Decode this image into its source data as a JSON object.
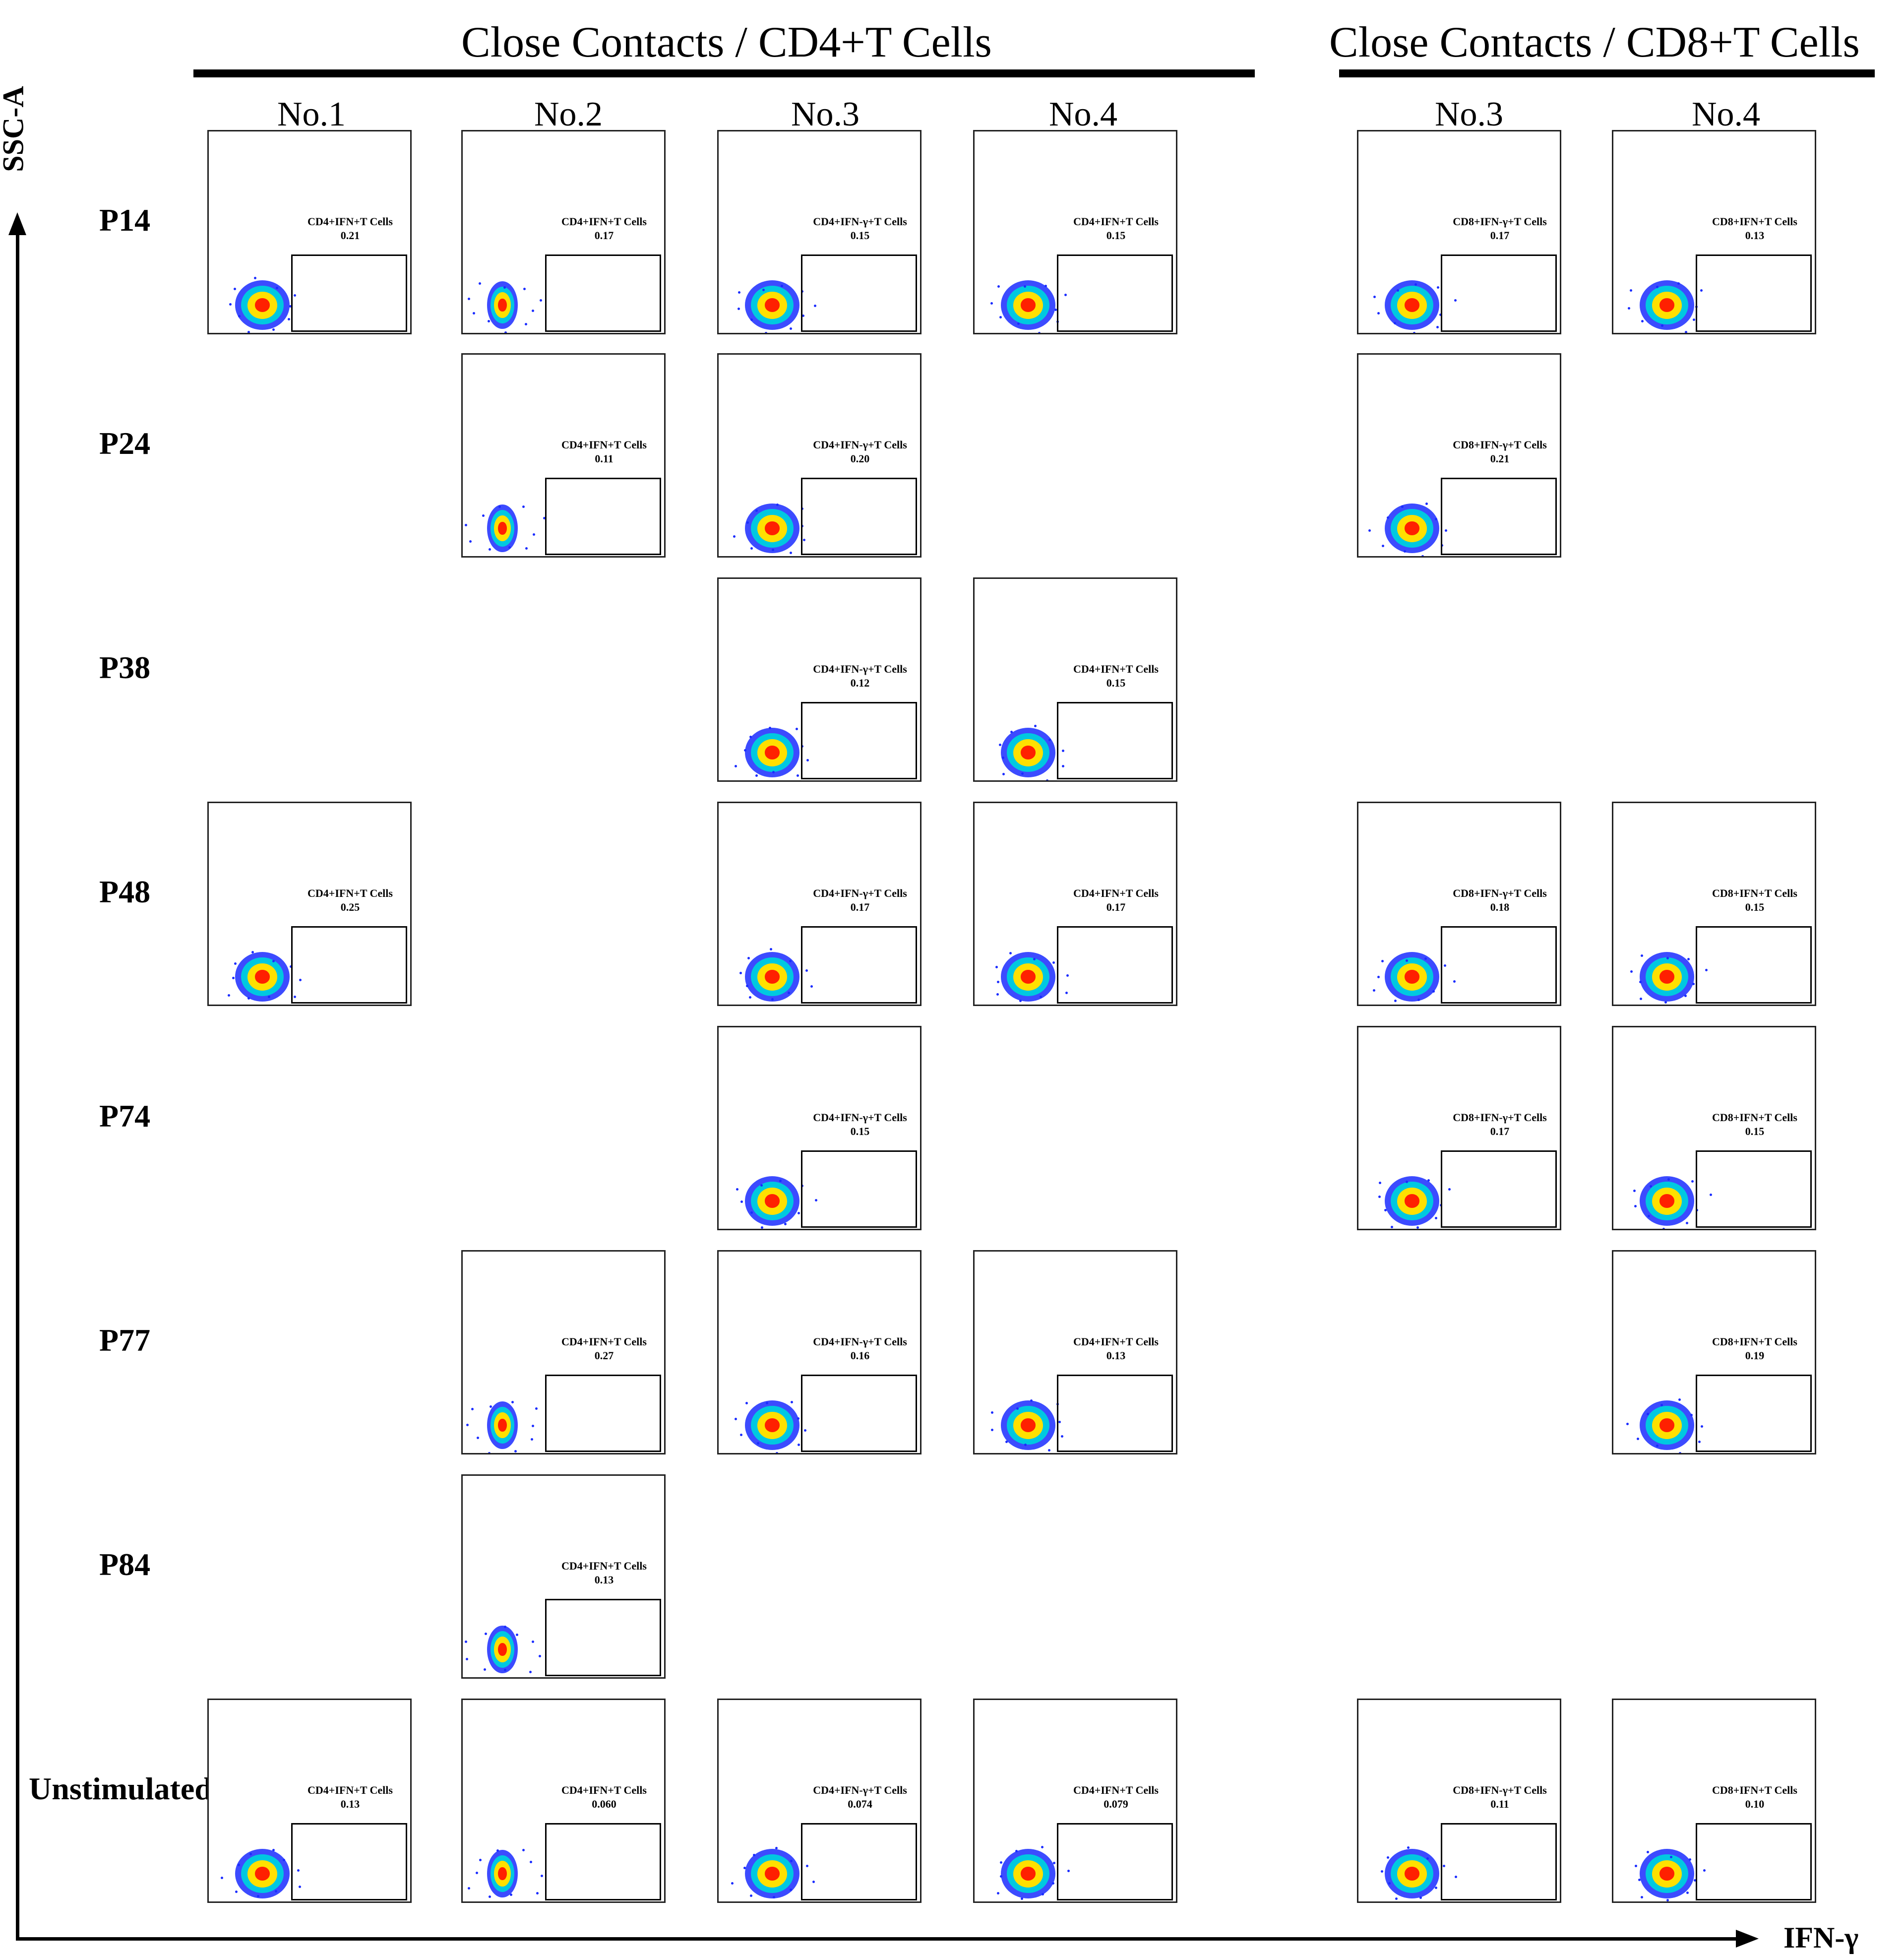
{
  "group_titles": [
    "Close Contacts / CD4+T Cells",
    "Close Contacts / CD8+T Cells"
  ],
  "column_labels": [
    "No.1",
    "No.2",
    "No.3",
    "No.4",
    "No.3",
    "No.4"
  ],
  "row_labels": [
    "P14",
    "P24",
    "P38",
    "P48",
    "P74",
    "P77",
    "P84",
    "Unstimulated"
  ],
  "y_axis_label": "SSC-A",
  "x_axis_label": "IFN-γ",
  "colors": {
    "cloud_outer": "#1a2cff",
    "cloud_mid": "#00c8e0",
    "cloud_inner": "#ffe000",
    "cloud_core": "#ff2000"
  },
  "panels": [
    {
      "row": 0,
      "col": 0,
      "gate": "CD4+IFN+T Cells",
      "value": "0.21"
    },
    {
      "row": 0,
      "col": 1,
      "gate": "CD4+IFN+T Cells",
      "value": "0.17"
    },
    {
      "row": 0,
      "col": 2,
      "gate": "CD4+IFN-γ+T Cells",
      "value": "0.15"
    },
    {
      "row": 0,
      "col": 3,
      "gate": "CD4+IFN+T Cells",
      "value": "0.15"
    },
    {
      "row": 0,
      "col": 4,
      "gate": "CD8+IFN-γ+T Cells",
      "value": "0.17"
    },
    {
      "row": 0,
      "col": 5,
      "gate": "CD8+IFN+T Cells",
      "value": "0.13"
    },
    {
      "row": 1,
      "col": 1,
      "gate": "CD4+IFN+T Cells",
      "value": "0.11"
    },
    {
      "row": 1,
      "col": 2,
      "gate": "CD4+IFN-γ+T Cells",
      "value": "0.20"
    },
    {
      "row": 1,
      "col": 4,
      "gate": "CD8+IFN-γ+T Cells",
      "value": "0.21"
    },
    {
      "row": 2,
      "col": 2,
      "gate": "CD4+IFN-γ+T Cells",
      "value": "0.12"
    },
    {
      "row": 2,
      "col": 3,
      "gate": "CD4+IFN+T Cells",
      "value": "0.15"
    },
    {
      "row": 3,
      "col": 0,
      "gate": "CD4+IFN+T Cells",
      "value": "0.25"
    },
    {
      "row": 3,
      "col": 2,
      "gate": "CD4+IFN-γ+T Cells",
      "value": "0.17"
    },
    {
      "row": 3,
      "col": 3,
      "gate": "CD4+IFN+T Cells",
      "value": "0.17"
    },
    {
      "row": 3,
      "col": 4,
      "gate": "CD8+IFN-γ+T Cells",
      "value": "0.18"
    },
    {
      "row": 3,
      "col": 5,
      "gate": "CD8+IFN+T Cells",
      "value": "0.15"
    },
    {
      "row": 4,
      "col": 2,
      "gate": "CD4+IFN-γ+T Cells",
      "value": "0.15"
    },
    {
      "row": 4,
      "col": 4,
      "gate": "CD8+IFN-γ+T Cells",
      "value": "0.17"
    },
    {
      "row": 4,
      "col": 5,
      "gate": "CD8+IFN+T Cells",
      "value": "0.15"
    },
    {
      "row": 5,
      "col": 1,
      "gate": "CD4+IFN+T Cells",
      "value": "0.27"
    },
    {
      "row": 5,
      "col": 2,
      "gate": "CD4+IFN-γ+T Cells",
      "value": "0.16"
    },
    {
      "row": 5,
      "col": 3,
      "gate": "CD4+IFN+T Cells",
      "value": "0.13"
    },
    {
      "row": 5,
      "col": 5,
      "gate": "CD8+IFN+T Cells",
      "value": "0.19"
    },
    {
      "row": 6,
      "col": 1,
      "gate": "CD4+IFN+T Cells",
      "value": "0.13"
    },
    {
      "row": 7,
      "col": 0,
      "gate": "CD4+IFN+T Cells",
      "value": "0.13"
    },
    {
      "row": 7,
      "col": 1,
      "gate": "CD4+IFN+T Cells",
      "value": "0.060"
    },
    {
      "row": 7,
      "col": 2,
      "gate": "CD4+IFN-γ+T Cells",
      "value": "0.074"
    },
    {
      "row": 7,
      "col": 3,
      "gate": "CD4+IFN+T Cells",
      "value": "0.079"
    },
    {
      "row": 7,
      "col": 4,
      "gate": "CD8+IFN-γ+T Cells",
      "value": "0.11"
    },
    {
      "row": 7,
      "col": 5,
      "gate": "CD8+IFN+T Cells",
      "value": "0.10"
    }
  ]
}
